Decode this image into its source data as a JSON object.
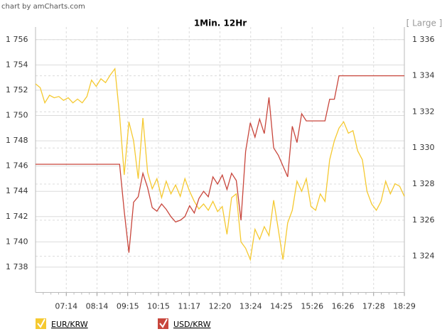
{
  "chart_data": {
    "type": "line",
    "credit": "chart by amCharts.com",
    "title": "1Min. 12Hr",
    "size_link": "[ Large ]",
    "grid": true,
    "xticks": [
      "07:14",
      "08:14",
      "09:15",
      "10:15",
      "11:17",
      "12:20",
      "13:24",
      "14:25",
      "15:26",
      "16:26",
      "17:28",
      "18:29"
    ],
    "ylim": [
      1736,
      1757
    ],
    "yticks": [
      {
        "value": 1738,
        "label": "1 738"
      },
      {
        "value": 1740,
        "label": "1 740"
      },
      {
        "value": 1742,
        "label": "1 742"
      },
      {
        "value": 1744,
        "label": "1 744"
      },
      {
        "value": 1746,
        "label": "1 746"
      },
      {
        "value": 1748,
        "label": "1 748"
      },
      {
        "value": 1750,
        "label": "1 750"
      },
      {
        "value": 1752,
        "label": "1 752"
      },
      {
        "value": 1754,
        "label": "1 754"
      },
      {
        "value": 1756,
        "label": "1 756"
      }
    ],
    "y2lim": [
      1322,
      1336.7
    ],
    "y2ticks": [
      {
        "value": 1324,
        "label": "1 324"
      },
      {
        "value": 1326,
        "label": "1 326"
      },
      {
        "value": 1328,
        "label": "1 328"
      },
      {
        "value": 1330,
        "label": "1 330"
      },
      {
        "value": 1332,
        "label": "1 332"
      },
      {
        "value": 1334,
        "label": "1 334"
      },
      {
        "value": 1336,
        "label": "1 336"
      }
    ],
    "series": [
      {
        "name": "EUR/KRW",
        "color": "#f5c930",
        "axis": "y",
        "values": [
          1752.5,
          1752.2,
          1751.0,
          1751.6,
          1751.4,
          1751.5,
          1751.2,
          1751.4,
          1751.0,
          1751.3,
          1751.0,
          1751.5,
          1752.8,
          1752.3,
          1752.9,
          1752.6,
          1753.2,
          1753.7,
          1750.0,
          1745.3,
          1749.5,
          1748.0,
          1745.0,
          1749.8,
          1745.5,
          1744.2,
          1745.0,
          1743.5,
          1744.8,
          1743.8,
          1744.5,
          1743.6,
          1745.0,
          1744.0,
          1743.2,
          1742.6,
          1743.0,
          1742.5,
          1743.2,
          1742.4,
          1742.8,
          1740.6,
          1743.5,
          1743.8,
          1740.0,
          1739.5,
          1738.6,
          1741.0,
          1740.2,
          1741.2,
          1740.5,
          1743.3,
          1741.0,
          1738.6,
          1741.5,
          1742.5,
          1744.8,
          1744.0,
          1745.0,
          1742.8,
          1742.5,
          1743.8,
          1743.2,
          1746.5,
          1748.0,
          1749.0,
          1749.5,
          1748.6,
          1748.8,
          1747.2,
          1746.5,
          1744.0,
          1743.0,
          1742.5,
          1743.2,
          1744.8,
          1743.8,
          1744.6,
          1744.4,
          1743.6
        ]
      },
      {
        "name": "USD/KRW",
        "color": "#c8463c",
        "axis": "y2",
        "values": [
          1329.1,
          1329.1,
          1329.1,
          1329.1,
          1329.1,
          1329.1,
          1329.1,
          1329.1,
          1329.1,
          1329.1,
          1329.1,
          1329.1,
          1329.1,
          1329.1,
          1329.1,
          1329.1,
          1329.1,
          1329.1,
          1329.1,
          1326.5,
          1324.2,
          1327.0,
          1327.3,
          1328.6,
          1327.8,
          1326.7,
          1326.5,
          1326.9,
          1326.6,
          1326.2,
          1325.9,
          1326.0,
          1326.2,
          1326.8,
          1326.4,
          1327.2,
          1327.6,
          1327.3,
          1328.4,
          1328.0,
          1328.5,
          1327.7,
          1328.6,
          1328.2,
          1326.0,
          1329.8,
          1331.4,
          1330.6,
          1331.6,
          1330.8,
          1332.8,
          1330.0,
          1329.6,
          1329.0,
          1328.4,
          1331.2,
          1330.3,
          1331.9,
          1331.5,
          1331.5,
          1331.5,
          1331.5,
          1331.5,
          1332.7,
          1332.7,
          1334.0,
          1334.0,
          1334.0,
          1334.0,
          1334.0,
          1334.0,
          1334.0,
          1334.0,
          1334.0,
          1334.0,
          1334.0,
          1334.0,
          1334.0,
          1334.0,
          1334.0
        ]
      }
    ]
  }
}
